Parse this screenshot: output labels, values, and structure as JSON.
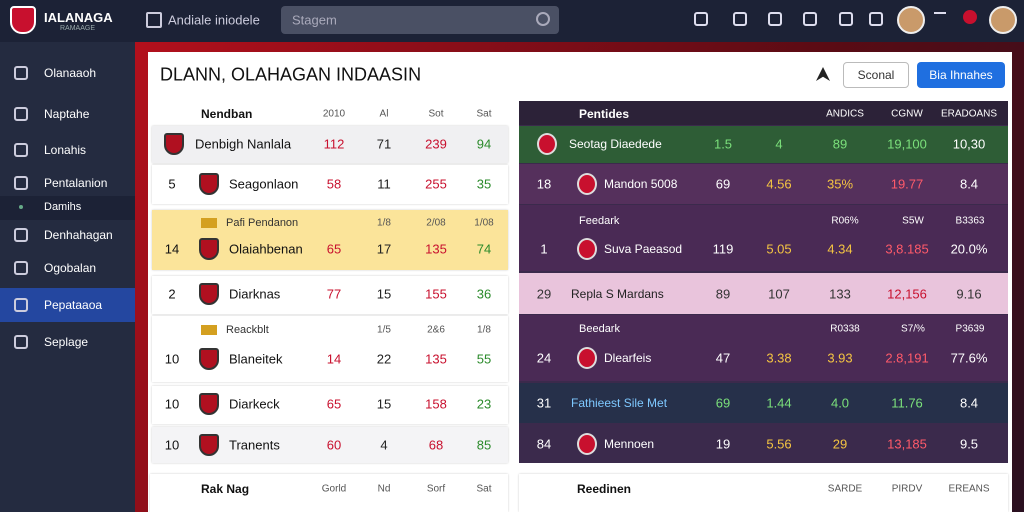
{
  "header": {
    "brand": "IALANAGA",
    "brand_sub": "RAMAAGE",
    "nav": "Andiale iniodele",
    "search": "Stagem"
  },
  "sidebar": {
    "items": [
      "Olanaaoh",
      "Naptahe",
      "Lonahis",
      "Pentalanion",
      "Damihs",
      "Denhahagan",
      "Ogobalan",
      "Pepataaoa",
      "Seplage"
    ]
  },
  "panel": {
    "title": "DLANN, OLAHAGAN INDAASIN",
    "buttons": [
      "Sconal",
      "Bia Ihnahes"
    ]
  },
  "left_table": {
    "header": [
      "Nendban",
      "2010",
      "Al",
      "Sot",
      "Sat"
    ],
    "rows": [
      {
        "name": "Denbigh Nanlala",
        "values": [
          "112",
          "71",
          "239",
          "94"
        ]
      },
      {
        "rank": "5",
        "name": "Seagonlaon",
        "values": [
          "58",
          "11",
          "255",
          "35"
        ]
      },
      {
        "rank": "14",
        "name": "Olaiahbenan",
        "values": [
          "65",
          "17",
          "135",
          "74"
        ]
      },
      {
        "rank": "2",
        "name": "Diarknas",
        "values": [
          "77",
          "15",
          "155",
          "36"
        ]
      },
      {
        "rank": "10",
        "name": "Blaneitek",
        "values": [
          "14",
          "22",
          "135",
          "55"
        ]
      },
      {
        "rank": "10",
        "name": "Diarkeck",
        "values": [
          "65",
          "15",
          "158",
          "23"
        ]
      },
      {
        "rank": "10",
        "name": "Tranents",
        "values": [
          "60",
          "4",
          "68",
          "85"
        ]
      }
    ],
    "sections": [
      {
        "title": "Pafi Pendanon",
        "cols": [
          "1/8",
          "2/08",
          "1/08"
        ]
      },
      {
        "title": "Reackblt",
        "cols": [
          "1/5",
          "2&6",
          "1/8"
        ]
      }
    ],
    "footer": [
      "Rak Nag",
      "Gorld",
      "Nd",
      "Sorf",
      "Sat"
    ]
  },
  "right_table": {
    "header": [
      "Pentides",
      "ANDICS",
      "CGNW",
      "ERADOANS"
    ],
    "rows": [
      {
        "name": "Seotag Diaedede",
        "values": [
          "1.5",
          "4",
          "89",
          "19,100",
          "10,30"
        ]
      },
      {
        "rank": "18",
        "name": "Mandon 5008",
        "values": [
          "69",
          "4.56",
          "35%",
          "19.77",
          "8.4"
        ]
      },
      {
        "rank": "1",
        "name": "Suva Paeasod",
        "values": [
          "119",
          "5.05",
          "4.34",
          "3,8.185",
          "20.0%"
        ]
      },
      {
        "rank": "29",
        "name": "Repla S Mardans",
        "values": [
          "89",
          "107",
          "133",
          "12,156",
          "9.16"
        ]
      },
      {
        "rank": "24",
        "name": "Dlearfeis",
        "values": [
          "47",
          "3.38",
          "3.93",
          "2.8,191",
          "77.6%"
        ]
      },
      {
        "rank": "31",
        "name": "Fathieest Sile Met",
        "values": [
          "69",
          "1.44",
          "4.0",
          "11.76",
          "8.4"
        ]
      },
      {
        "rank": "84",
        "name": "Mennoen",
        "values": [
          "19",
          "5.56",
          "29",
          "13,185",
          "9.5"
        ]
      }
    ],
    "sections": [
      {
        "title": "Feedark",
        "cols": [
          "R06%",
          "S5W",
          "B3363"
        ]
      },
      {
        "title": "Beedark",
        "cols": [
          "R0338",
          "S7/%",
          "P3639"
        ]
      }
    ],
    "footer": [
      "Reedinen",
      "SARDE",
      "PIRDV",
      "EREANS"
    ]
  }
}
